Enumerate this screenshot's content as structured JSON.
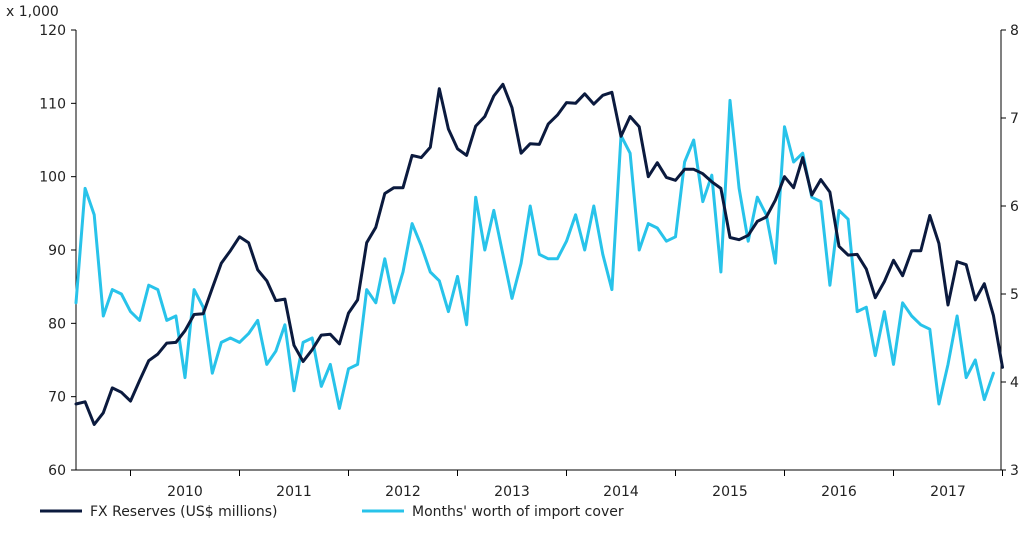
{
  "chart_data": {
    "type": "line",
    "unit_label": "x 1,000",
    "x_ticks": [
      "2010",
      "2011",
      "2012",
      "2013",
      "2014",
      "2015",
      "2016",
      "2017"
    ],
    "y_left": {
      "ticks": [
        "60",
        "70",
        "80",
        "90",
        "100",
        "110",
        "120"
      ],
      "range": [
        60,
        120
      ]
    },
    "y_right": {
      "ticks": [
        "3",
        "4",
        "5",
        "6",
        "7",
        "8"
      ],
      "range": [
        3,
        8
      ]
    },
    "grid": false,
    "legend_position": "bottom",
    "x_start": "2009-07",
    "series": [
      {
        "name": "FX Reserves (US$ millions)",
        "axis": "left",
        "color": "#0b1a3e",
        "values": [
          69.0,
          69.3,
          66.2,
          67.8,
          71.2,
          70.6,
          69.4,
          72.2,
          74.9,
          75.8,
          77.3,
          77.4,
          79.0,
          81.2,
          81.3,
          84.8,
          88.2,
          89.9,
          91.8,
          91.0,
          87.3,
          85.8,
          83.1,
          83.3,
          77.0,
          74.8,
          76.4,
          78.4,
          78.5,
          77.2,
          81.4,
          83.2,
          91.0,
          93.1,
          97.7,
          98.5,
          98.5,
          102.9,
          102.6,
          104.0,
          112.0,
          106.5,
          103.8,
          102.9,
          106.9,
          108.2,
          111.0,
          112.6,
          109.4,
          103.2,
          104.5,
          104.4,
          107.2,
          108.4,
          110.1,
          110.0,
          111.3,
          109.9,
          111.1,
          111.5,
          105.5,
          108.2,
          106.8,
          100.0,
          101.9,
          99.9,
          99.5,
          101.0,
          101.0,
          100.4,
          99.3,
          98.4,
          91.7,
          91.4,
          92.0,
          93.9,
          94.5,
          96.8,
          100.0,
          98.5,
          102.6,
          97.5,
          99.6,
          97.9,
          90.5,
          89.3,
          89.4,
          87.4,
          83.5,
          85.7,
          88.6,
          86.5,
          89.9,
          89.9,
          94.7,
          90.9,
          82.5,
          88.4,
          88.0,
          83.2,
          85.4,
          81.1,
          74.0
        ]
      },
      {
        "name": "Months' worth of import cover",
        "axis": "right",
        "color": "#28c3ea",
        "values": [
          4.9,
          6.2,
          5.9,
          4.75,
          5.05,
          5.0,
          4.8,
          4.7,
          5.1,
          5.05,
          4.7,
          4.75,
          4.05,
          5.05,
          4.85,
          4.1,
          4.45,
          4.5,
          4.45,
          4.55,
          4.7,
          4.2,
          4.35,
          4.65,
          3.9,
          4.45,
          4.5,
          3.95,
          4.2,
          3.7,
          4.15,
          4.2,
          5.05,
          4.9,
          5.4,
          4.9,
          5.25,
          5.8,
          5.55,
          5.25,
          5.15,
          4.8,
          5.2,
          4.65,
          6.1,
          5.5,
          5.95,
          5.45,
          4.95,
          5.35,
          6.0,
          5.45,
          5.4,
          5.4,
          5.6,
          5.9,
          5.5,
          6.0,
          5.45,
          5.05,
          6.8,
          6.6,
          5.5,
          5.8,
          5.75,
          5.6,
          5.65,
          6.5,
          6.75,
          6.05,
          6.35,
          5.25,
          7.2,
          6.2,
          5.6,
          6.1,
          5.9,
          5.35,
          6.9,
          6.5,
          6.6,
          6.1,
          6.05,
          5.1,
          5.95,
          5.85,
          4.8,
          4.85,
          4.3,
          4.8,
          4.2,
          4.9,
          4.75,
          4.65,
          4.6,
          3.75,
          4.2,
          4.75,
          4.05,
          4.25,
          3.8,
          4.1
        ]
      }
    ]
  }
}
